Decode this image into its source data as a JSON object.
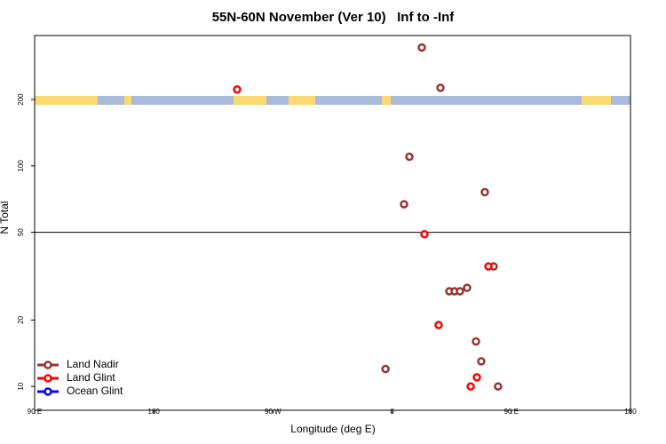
{
  "chart_data": {
    "type": "scatter",
    "title": "55N-60N November (Ver 10)   Inf to -Inf",
    "xlabel": "Longitude (deg E)",
    "ylabel": "N Total",
    "xlim": [
      90,
      540
    ],
    "ylim": [
      7.8,
      390
    ],
    "yscale": "log",
    "xticks": [
      {
        "value": 90,
        "label": "90 E"
      },
      180,
      {
        "value": 270,
        "label": "90 W"
      },
      {
        "value": 360,
        "label": "0"
      },
      {
        "value": 450,
        "label": "90 E"
      },
      {
        "value": 540,
        "label": "180"
      }
    ],
    "yticks": [
      10,
      20,
      50,
      100,
      200
    ],
    "hline": 50,
    "legend": "lower left",
    "series": [
      {
        "name": "Land Nadir",
        "color": "#993333",
        "x": [
          382.4,
          396.5,
          373,
          430,
          369,
          436.7,
          403.2,
          407.2,
          411.2,
          416.6,
          423.3,
          427.3,
          355,
          440
        ],
        "values": [
          344,
          226,
          110,
          76,
          67,
          35,
          27,
          27,
          27,
          28,
          16,
          13,
          12,
          10
        ]
      },
      {
        "name": "Land Glint",
        "color": "#ff0000",
        "x": [
          242.9,
          384.4,
          432.7,
          395.1,
          424,
          419.3
        ],
        "values": [
          222,
          49,
          35,
          19,
          11,
          10
        ]
      },
      {
        "name": "Ocean Glint",
        "color": "#0000ff",
        "x": [],
        "values": []
      }
    ]
  }
}
